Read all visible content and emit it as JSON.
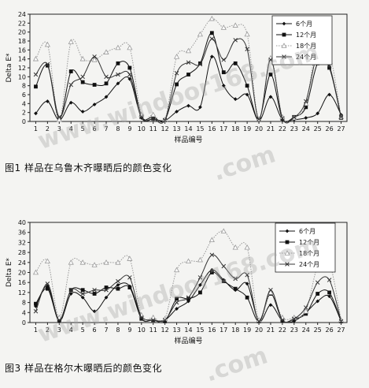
{
  "watermarks": [
    "www.windoor168.com",
    "www.windoor168.com",
    ".com",
    ".com"
  ],
  "charts": [
    {
      "figure_label": "图1 样品在乌鲁木齐曝晒后的颜色变化",
      "chart_data": {
        "type": "line",
        "xlabel": "样品编号",
        "ylabel": "Delta E*",
        "x": [
          1,
          2,
          3,
          4,
          5,
          6,
          7,
          8,
          9,
          10,
          11,
          12,
          13,
          14,
          15,
          16,
          17,
          18,
          19,
          20,
          21,
          22,
          23,
          24,
          25,
          26,
          27
        ],
        "ylim": [
          0,
          24
        ],
        "yticks": [
          0,
          2,
          4,
          6,
          8,
          10,
          12,
          14,
          16,
          18,
          20,
          22,
          24
        ],
        "legend_position": "top-right",
        "series": [
          {
            "name": "6个月",
            "marker": "diamond",
            "dash": "solid",
            "color": "#111111",
            "values": [
              1.8,
              4.5,
              0.3,
              4.2,
              2.2,
              3.8,
              5.5,
              8.5,
              9.5,
              0.8,
              0.5,
              0.2,
              2.2,
              3.5,
              3.2,
              14.5,
              8,
              5,
              6,
              0.2,
              5.5,
              0.4,
              0.4,
              0.8,
              1.8,
              6,
              1.5
            ]
          },
          {
            "name": "12个月",
            "marker": "square",
            "dash": "solid",
            "color": "#111111",
            "values": [
              7.8,
              12.5,
              0.5,
              11.2,
              8.8,
              8.2,
              8.5,
              13,
              12,
              1.2,
              1,
              0.3,
              8.3,
              10.5,
              13,
              19.8,
              11,
              13,
              8,
              0.5,
              10.5,
              0.6,
              1,
              3.2,
              13,
              12,
              0.8
            ]
          },
          {
            "name": "18个月",
            "marker": "triangle",
            "dash": "dotted",
            "color": "#999999",
            "values": [
              14,
              17.2,
              0.4,
              17.8,
              14,
              13.8,
              15.5,
              16.5,
              16.5,
              1.5,
              1.5,
              0.4,
              14.5,
              15.8,
              19.5,
              23,
              21,
              21.5,
              19.5,
              0.5,
              14.2,
              1,
              0.8,
              4,
              17.5,
              15.5,
              1
            ]
          },
          {
            "name": "24个月",
            "marker": "x",
            "dash": "solid",
            "color": "#333333",
            "values": [
              10.5,
              12.8,
              1,
              8.2,
              10,
              14.5,
              10,
              10.5,
              10.5,
              1,
              0.6,
              0.3,
              10.8,
              13.2,
              12.8,
              18.5,
              13.8,
              18.2,
              16.2,
              0.5,
              13.8,
              0.7,
              0.9,
              4.5,
              15,
              12.5,
              1
            ]
          }
        ]
      }
    },
    {
      "figure_label": "图3 样品在格尔木曝晒后的颜色变化",
      "chart_data": {
        "type": "line",
        "xlabel": "样品编号",
        "ylabel": "Delta E*",
        "x": [
          1,
          2,
          3,
          4,
          5,
          6,
          7,
          8,
          9,
          10,
          11,
          12,
          13,
          14,
          15,
          16,
          17,
          18,
          19,
          20,
          21,
          22,
          23,
          24,
          25,
          26,
          27
        ],
        "ylim": [
          0,
          40
        ],
        "yticks": [
          0,
          4,
          8,
          12,
          16,
          20,
          24,
          28,
          32,
          36,
          40
        ],
        "legend_position": "top-right",
        "series": [
          {
            "name": "6个月",
            "marker": "diamond",
            "dash": "solid",
            "color": "#111111",
            "values": [
              6.5,
              14.5,
              0.5,
              11.5,
              10,
              4.5,
              10,
              15,
              14.5,
              2.5,
              1,
              1,
              5.5,
              8.5,
              15,
              21,
              17,
              13,
              15.5,
              0.5,
              7,
              0.7,
              0.6,
              4,
              8.5,
              10.5,
              0.5
            ]
          },
          {
            "name": "12个月",
            "marker": "square",
            "dash": "solid",
            "color": "#111111",
            "values": [
              7.5,
              13.5,
              1,
              13,
              13,
              11.5,
              14,
              13.5,
              14,
              1.5,
              1,
              0.5,
              9.5,
              9.5,
              12,
              20,
              16.5,
              13.5,
              10,
              0.5,
              11.5,
              0.8,
              1.5,
              3.5,
              11.5,
              12,
              0.5
            ]
          },
          {
            "name": "18个月",
            "marker": "triangle",
            "dash": "dotted",
            "color": "#999999",
            "values": [
              20,
              24.5,
              2,
              24,
              24,
              23,
              24,
              24,
              25.5,
              3,
              2,
              1.5,
              21,
              24.5,
              25,
              33,
              36.5,
              30,
              30,
              1,
              12,
              2,
              2,
              4.5,
              22.5,
              24,
              1
            ]
          },
          {
            "name": "24个月",
            "marker": "x",
            "dash": "solid",
            "color": "#333333",
            "values": [
              4.5,
              15.5,
              1,
              13,
              11.5,
              13,
              13,
              16.5,
              18,
              2,
              1,
              1,
              8,
              10,
              18,
              27,
              22.5,
              17.5,
              19,
              0.5,
              13,
              1,
              1.5,
              6,
              16,
              17,
              0.5
            ]
          }
        ]
      }
    }
  ]
}
